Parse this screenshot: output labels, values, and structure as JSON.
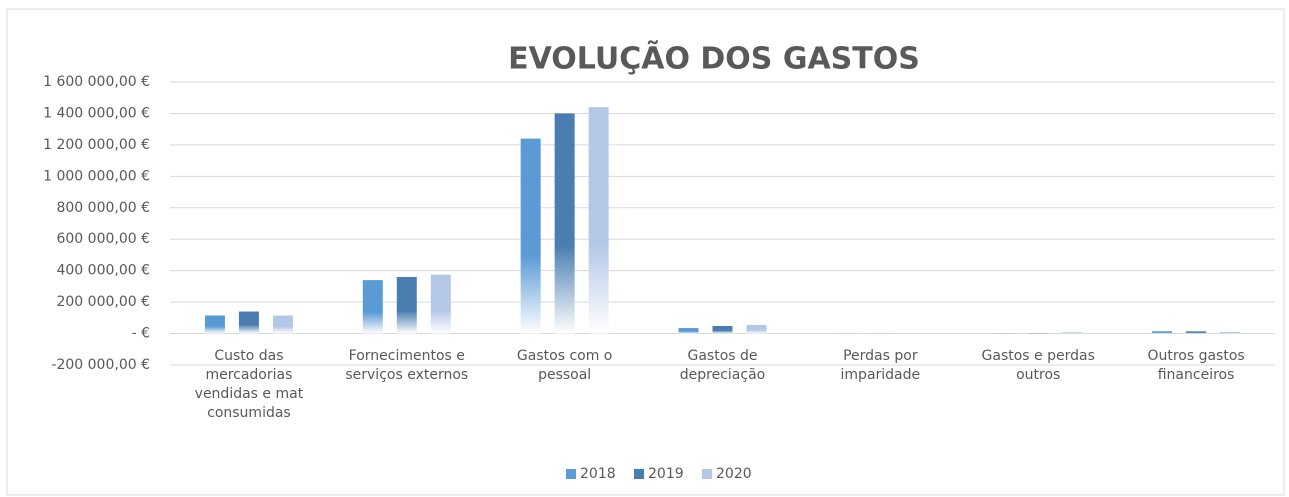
{
  "chart_data": {
    "type": "bar",
    "title": "EVOLUÇÃO DOS GASTOS",
    "categories": [
      "Custo das mercadorias vendidas e mat consumidas",
      "Fornecimentos e serviços externos",
      "Gastos com o pessoal",
      "Gastos de depreciação",
      "Perdas por imparidade",
      "Gastos e perdas outros",
      "Outros gastos financeiros"
    ],
    "series": [
      {
        "name": "2018",
        "color": "#5b9bd5",
        "values": [
          115000,
          340000,
          1240000,
          35000,
          1000,
          2000,
          15000
        ]
      },
      {
        "name": "2019",
        "color": "#4a7eb0",
        "values": [
          140000,
          360000,
          1400000,
          48000,
          1000,
          2000,
          14000
        ]
      },
      {
        "name": "2020",
        "color": "#b4c7e7",
        "values": [
          115000,
          375000,
          1440000,
          55000,
          1000,
          8000,
          10000
        ]
      }
    ],
    "ylim": [
      -200000,
      1600000
    ],
    "yticks": [
      {
        "value": -200000,
        "label": "-200 000,00 €"
      },
      {
        "value": 0,
        "label": "- €"
      },
      {
        "value": 200000,
        "label": "200 000,00 €"
      },
      {
        "value": 400000,
        "label": "400 000,00 €"
      },
      {
        "value": 600000,
        "label": "600 000,00 €"
      },
      {
        "value": 800000,
        "label": "800 000,00 €"
      },
      {
        "value": 1000000,
        "label": "1 000 000,00 €"
      },
      {
        "value": 1200000,
        "label": "1 200 000,00 €"
      },
      {
        "value": 1400000,
        "label": "1 400 000,00 €"
      },
      {
        "value": 1600000,
        "label": "1 600 000,00 €"
      }
    ],
    "grid": true,
    "legend": "bottom"
  }
}
